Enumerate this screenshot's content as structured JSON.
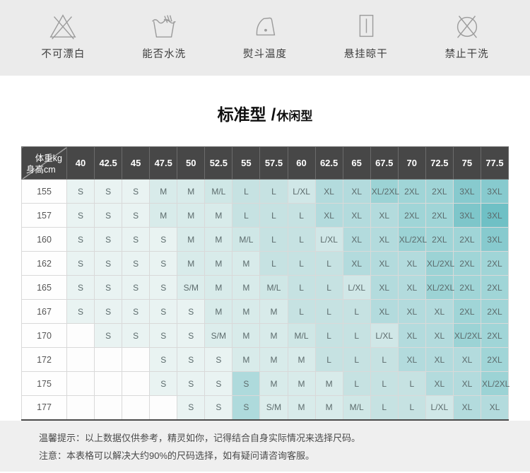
{
  "page_colors": {
    "strip_bg": "#ebebeb",
    "content_bg": "#ffffff",
    "footer_bg": "#efefef"
  },
  "care_icons": [
    {
      "icon": "do-not-bleach-icon",
      "label": "不可漂白"
    },
    {
      "icon": "hand-wash-tub-icon",
      "label": "能否水洗"
    },
    {
      "icon": "iron-icon",
      "label": "熨斗温度"
    },
    {
      "icon": "hang-dry-icon",
      "label": "悬挂晾干"
    },
    {
      "icon": "no-dry-clean-icon",
      "label": "禁止干洗"
    }
  ],
  "title": {
    "primary": "标准型",
    "separator": "/",
    "secondary": "休闲型"
  },
  "size_table": {
    "corner": {
      "top_right": "体重kg",
      "bottom_left": "身高cm"
    },
    "weight_columns": [
      "40",
      "42.5",
      "45",
      "47.5",
      "50",
      "52.5",
      "55",
      "57.5",
      "60",
      "62.5",
      "65",
      "67.5",
      "70",
      "72.5",
      "75",
      "77.5"
    ],
    "rows": [
      {
        "height": "155",
        "sizes": [
          "S",
          "S",
          "S",
          "M",
          "M",
          "M/L",
          "L",
          "L",
          "L/XL",
          "XL",
          "XL",
          "XL/2XL",
          "2XL",
          "2XL",
          "3XL",
          "3XL"
        ]
      },
      {
        "height": "157",
        "sizes": [
          "S",
          "S",
          "S",
          "M",
          "M",
          "M",
          "L",
          "L",
          "L",
          "XL",
          "XL",
          "XL",
          "2XL",
          "2XL",
          "3XL",
          "3XL"
        ]
      },
      {
        "height": "160",
        "sizes": [
          "S",
          "S",
          "S",
          "S",
          "M",
          "M",
          "M/L",
          "L",
          "L",
          "L/XL",
          "XL",
          "XL",
          "XL/2XL",
          "2XL",
          "2XL",
          "3XL"
        ]
      },
      {
        "height": "162",
        "sizes": [
          "S",
          "S",
          "S",
          "S",
          "M",
          "M",
          "M",
          "L",
          "L",
          "L",
          "XL",
          "XL",
          "XL",
          "XL/2XL",
          "2XL",
          "2XL"
        ]
      },
      {
        "height": "165",
        "sizes": [
          "S",
          "S",
          "S",
          "S",
          "S/M",
          "M",
          "M",
          "M/L",
          "L",
          "L",
          "L/XL",
          "XL",
          "XL",
          "XL/2XL",
          "2XL",
          "2XL"
        ]
      },
      {
        "height": "167",
        "sizes": [
          "S",
          "S",
          "S",
          "S",
          "S",
          "M",
          "M",
          "M",
          "L",
          "L",
          "L",
          "XL",
          "XL",
          "XL",
          "2XL",
          "2XL"
        ]
      },
      {
        "height": "170",
        "sizes": [
          "",
          "S",
          "S",
          "S",
          "S",
          "S/M",
          "M",
          "M",
          "M/L",
          "L",
          "L",
          "L/XL",
          "XL",
          "XL",
          "XL/2XL",
          "2XL"
        ]
      },
      {
        "height": "172",
        "sizes": [
          "",
          "",
          "",
          "S",
          "S",
          "S",
          "M",
          "M",
          "M",
          "L",
          "L",
          "L",
          "XL",
          "XL",
          "XL",
          "2XL"
        ]
      },
      {
        "height": "175",
        "sizes": [
          "",
          "",
          "",
          "S",
          "S",
          "S",
          "S",
          "M",
          "M",
          "M",
          "L",
          "L",
          "L",
          "XL",
          "XL",
          "XL/2XL"
        ]
      },
      {
        "height": "177",
        "sizes": [
          "",
          "",
          "",
          "",
          "S",
          "S",
          "S",
          "S/M",
          "M",
          "M",
          "M/L",
          "L",
          "L",
          "L/XL",
          "XL",
          "XL"
        ]
      }
    ],
    "colors": {
      "header_bg": "#474747",
      "header_text": "#ffffff",
      "header_border": "#6b6b6b",
      "diagonal_line": "#9a9a9a",
      "body_border": "#d9d9d9",
      "cell_text": "#5c6b6c",
      "empty_fill": "#fdfdfd",
      "size_fill": {
        "S": "#e9f3f2",
        "S/M": "#dcedec",
        "M": "#d8ebea",
        "M/L": "#cfe7e6",
        "L": "#c6e2e2",
        "L/XL": "#d0e7e7",
        "XL": "#b3dbdd",
        "XL/2XL": "#9cd3d5",
        "2XL": "#a0d5d7",
        "3XL": "#87cace"
      },
      "overrides": {
        "8-6": "#aedadc",
        "9-6": "#aedadc",
        "1-14": "#7ec6ca",
        "1-15": "#6fc0c5"
      }
    }
  },
  "notes": [
    {
      "text": "温馨提示：以上数据仅供参考，精灵如你，记得结合自身实际情况来选择尺码。"
    },
    {
      "text": "注意：本表格可以解决大约90%的尺码选择，如有疑问请咨询客服。"
    }
  ]
}
